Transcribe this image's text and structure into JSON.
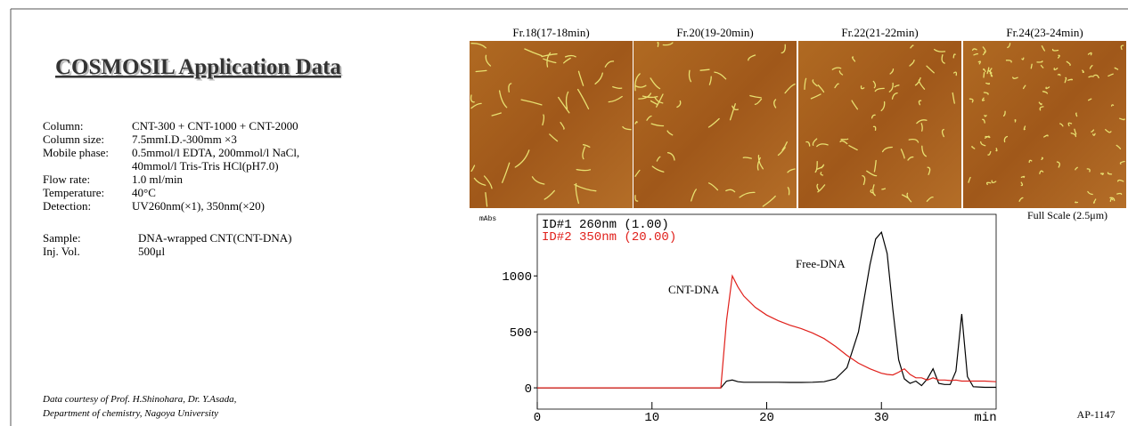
{
  "header": {
    "title": "COSMOSIL Application Data"
  },
  "conditions": [
    {
      "label": "Column:",
      "lines": [
        "CNT-300 + CNT-1000 + CNT-2000"
      ]
    },
    {
      "label": "Column size:",
      "lines": [
        "7.5mmI.D.-300mm  ×3"
      ]
    },
    {
      "label": "Mobile phase:",
      "lines": [
        "0.5mmol/l EDTA, 200mmol/l NaCl,",
        "40mmol/l Tris-Tris HCl(pH7.0)"
      ]
    },
    {
      "label": "Flow rate:",
      "lines": [
        "1.0 ml/min"
      ]
    },
    {
      "label": "Temperature:",
      "lines": [
        "40°C"
      ]
    },
    {
      "label": "Detection:",
      "lines": [
        "UV260nm(×1), 350nm(×20)"
      ]
    }
  ],
  "sample": [
    {
      "label": "Sample:",
      "lines": [
        "DNA-wrapped CNT(CNT-DNA)"
      ]
    },
    {
      "label": "Inj. Vol.",
      "lines": [
        "500μl"
      ]
    }
  ],
  "credit": [
    "Data courtesy of Prof. H.Shinohara, Dr. Y.Asada,",
    "Department of chemistry, Nagoya University"
  ],
  "images": {
    "captions": [
      "Fr.18(17-18min)",
      "Fr.20(19-20min)",
      "Fr.22(21-22min)",
      "Fr.24(23-24min)"
    ],
    "scale": "Full Scale (2.5μm)"
  },
  "code": "AP-1147",
  "chart_data": {
    "type": "line",
    "x_label": "min",
    "y_label": "mAbs",
    "x": [
      0,
      15,
      16,
      16.5,
      17,
      17.5,
      18,
      19,
      20,
      21,
      22,
      23,
      24,
      25,
      26,
      27,
      28,
      29,
      29.5,
      30,
      30.5,
      31,
      31.5,
      32,
      32.5,
      33,
      33.5,
      34,
      34.5,
      35,
      35.5,
      36,
      36.5,
      37,
      37.5,
      38,
      39,
      40
    ],
    "series": [
      {
        "name": "ID#1 260nm (1.00)",
        "color": "#000000",
        "values": [
          0,
          0,
          0,
          60,
          70,
          55,
          50,
          50,
          50,
          50,
          48,
          48,
          50,
          55,
          80,
          180,
          500,
          1100,
          1330,
          1390,
          1200,
          700,
          250,
          80,
          40,
          60,
          20,
          80,
          170,
          40,
          30,
          30,
          150,
          660,
          100,
          10,
          5,
          5
        ]
      },
      {
        "name": "ID#2 350nm (20.00)",
        "color": "#e0201b",
        "values": [
          0,
          0,
          0,
          600,
          1000,
          900,
          820,
          720,
          650,
          600,
          560,
          530,
          490,
          440,
          370,
          290,
          220,
          170,
          150,
          130,
          120,
          115,
          140,
          170,
          120,
          90,
          90,
          70,
          90,
          70,
          70,
          65,
          70,
          60,
          60,
          60,
          60,
          55
        ]
      }
    ],
    "annotations": [
      "CNT-DNA",
      "Free-DNA"
    ],
    "xlim": [
      0,
      40
    ],
    "ylim": [
      -190,
      1550
    ],
    "xticks": [
      0,
      10,
      20,
      30
    ],
    "yticks": [
      0,
      500,
      1000
    ]
  }
}
